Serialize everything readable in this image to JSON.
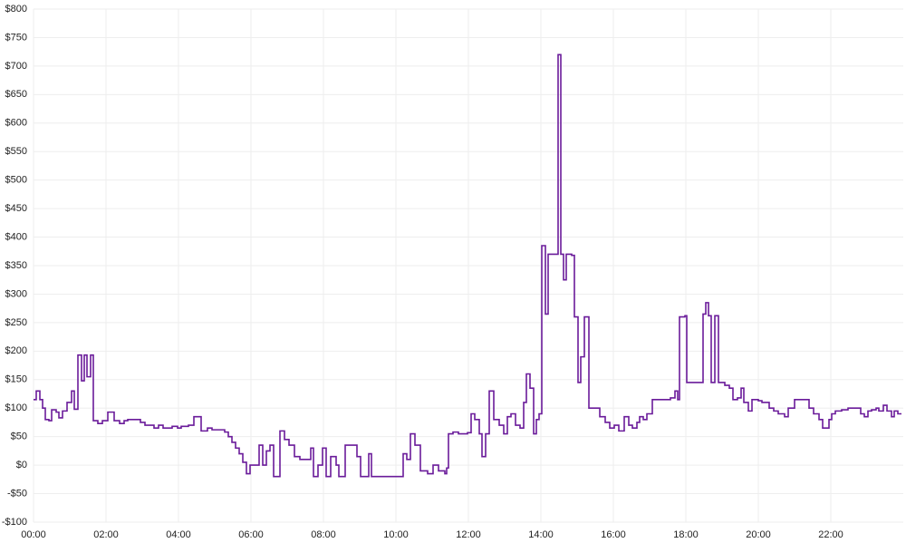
{
  "chart_data": {
    "type": "step",
    "step": "post",
    "x": [
      0,
      0.075,
      0.175,
      0.25,
      0.325,
      0.425,
      0.5,
      0.625,
      0.7,
      0.8,
      0.925,
      1.05,
      1.125,
      1.225,
      1.325,
      1.4,
      1.475,
      1.575,
      1.65,
      1.775,
      1.9,
      2.05,
      2.225,
      2.375,
      2.5,
      2.6,
      2.95,
      3.075,
      3.325,
      3.45,
      3.575,
      3.825,
      3.975,
      4.075,
      4.275,
      4.425,
      4.625,
      4.8,
      4.925,
      5.275,
      5.375,
      5.475,
      5.575,
      5.675,
      5.775,
      5.875,
      5.975,
      6.225,
      6.325,
      6.425,
      6.525,
      6.625,
      6.8,
      6.925,
      7.05,
      7.2,
      7.35,
      7.65,
      7.725,
      7.85,
      7.975,
      8.075,
      8.2,
      8.35,
      8.425,
      8.6,
      8.925,
      9.025,
      9.25,
      9.325,
      10.2,
      10.3,
      10.4,
      10.525,
      10.675,
      10.875,
      11.025,
      11.175,
      11.35,
      11.4,
      11.45,
      11.575,
      11.725,
      11.975,
      12.075,
      12.175,
      12.3,
      12.375,
      12.475,
      12.575,
      12.7,
      12.85,
      12.975,
      13.075,
      13.175,
      13.3,
      13.425,
      13.525,
      13.6,
      13.7,
      13.8,
      13.875,
      13.95,
      14.025,
      14.125,
      14.2,
      14.475,
      14.55,
      14.625,
      14.7,
      14.85,
      14.925,
      15.025,
      15.1,
      15.2,
      15.325,
      15.625,
      15.775,
      15.9,
      16.025,
      16.15,
      16.3,
      16.425,
      16.525,
      16.65,
      16.725,
      16.825,
      16.925,
      17.075,
      17.575,
      17.7,
      17.775,
      17.825,
      17.975,
      18.025,
      18.475,
      18.55,
      18.625,
      18.7,
      18.8,
      18.9,
      19.075,
      19.2,
      19.3,
      19.425,
      19.525,
      19.6,
      19.725,
      19.825,
      20,
      20.1,
      20.3,
      20.425,
      20.55,
      20.725,
      20.825,
      21,
      21.4,
      21.525,
      21.675,
      21.775,
      21.95,
      22.025,
      22.125,
      22.3,
      22.475,
      22.825,
      22.925,
      23.025,
      23.125,
      23.25,
      23.325,
      23.45,
      23.55,
      23.675,
      23.75,
      23.85,
      23.95
    ],
    "values": [
      115,
      130,
      115,
      100,
      80,
      78,
      97,
      93,
      83,
      95,
      110,
      130,
      98,
      193,
      148,
      193,
      155,
      193,
      78,
      73,
      78,
      93,
      78,
      73,
      78,
      80,
      75,
      70,
      65,
      70,
      65,
      68,
      65,
      68,
      70,
      85,
      60,
      65,
      62,
      58,
      50,
      40,
      30,
      20,
      5,
      -15,
      0,
      35,
      0,
      25,
      35,
      -20,
      60,
      45,
      35,
      15,
      10,
      30,
      -20,
      0,
      30,
      -20,
      15,
      0,
      -20,
      35,
      15,
      -20,
      20,
      -20,
      20,
      10,
      55,
      35,
      -10,
      -15,
      0,
      -10,
      -15,
      -5,
      55,
      58,
      55,
      57,
      90,
      80,
      55,
      15,
      55,
      130,
      80,
      70,
      55,
      85,
      90,
      70,
      65,
      110,
      160,
      135,
      55,
      80,
      90,
      385,
      265,
      370,
      720,
      370,
      325,
      370,
      368,
      260,
      145,
      190,
      260,
      100,
      85,
      75,
      65,
      70,
      60,
      85,
      70,
      65,
      75,
      85,
      80,
      90,
      115,
      118,
      130,
      115,
      260,
      262,
      145,
      265,
      285,
      262,
      145,
      262,
      145,
      140,
      135,
      115,
      118,
      135,
      110,
      95,
      115,
      113,
      110,
      100,
      95,
      90,
      85,
      100,
      115,
      100,
      90,
      80,
      65,
      80,
      90,
      95,
      97,
      100,
      90,
      85,
      95,
      97,
      100,
      95,
      105,
      95,
      85,
      95,
      90,
      90
    ],
    "color": "#6a1b9a",
    "xlim": [
      0,
      24
    ],
    "xticks": [
      {
        "value": 0,
        "label": "00:00"
      },
      {
        "value": 2,
        "label": "02:00"
      },
      {
        "value": 4,
        "label": "04:00"
      },
      {
        "value": 6,
        "label": "06:00"
      },
      {
        "value": 8,
        "label": "08:00"
      },
      {
        "value": 10,
        "label": "10:00"
      },
      {
        "value": 12,
        "label": "12:00"
      },
      {
        "value": 14,
        "label": "14:00"
      },
      {
        "value": 16,
        "label": "16:00"
      },
      {
        "value": 18,
        "label": "18:00"
      },
      {
        "value": 20,
        "label": "20:00"
      },
      {
        "value": 22,
        "label": "22:00"
      }
    ],
    "ylim": [
      -100,
      800
    ],
    "yticks": [
      {
        "value": -100,
        "label": "-$100"
      },
      {
        "value": -50,
        "label": "-$50"
      },
      {
        "value": 0,
        "label": "$0"
      },
      {
        "value": 50,
        "label": "$50"
      },
      {
        "value": 100,
        "label": "$100"
      },
      {
        "value": 150,
        "label": "$150"
      },
      {
        "value": 200,
        "label": "$200"
      },
      {
        "value": 250,
        "label": "$250"
      },
      {
        "value": 300,
        "label": "$300"
      },
      {
        "value": 350,
        "label": "$350"
      },
      {
        "value": 400,
        "label": "$400"
      },
      {
        "value": 450,
        "label": "$450"
      },
      {
        "value": 500,
        "label": "$500"
      },
      {
        "value": 550,
        "label": "$550"
      },
      {
        "value": 600,
        "label": "$600"
      },
      {
        "value": 650,
        "label": "$650"
      },
      {
        "value": 700,
        "label": "$700"
      },
      {
        "value": 750,
        "label": "$750"
      },
      {
        "value": 800,
        "label": "$800"
      }
    ],
    "grid": true
  }
}
